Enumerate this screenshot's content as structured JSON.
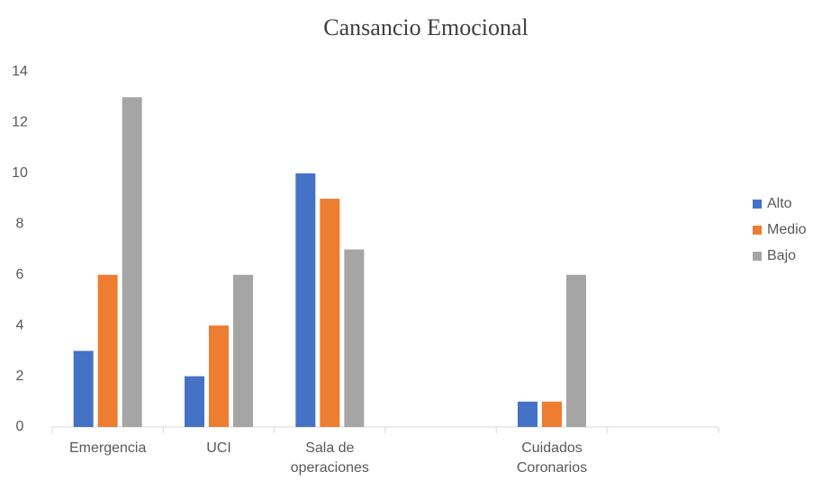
{
  "chart_data": {
    "type": "bar",
    "title": "Cansancio Emocional",
    "categories": [
      "Emergencia",
      "UCI",
      "Sala de operaciones",
      null,
      "Cuidados Coronarios",
      null
    ],
    "series": [
      {
        "name": "Alto",
        "color": "#4472c4",
        "values": [
          3,
          2,
          10,
          null,
          1,
          null
        ]
      },
      {
        "name": "Medio",
        "color": "#ed7d31",
        "values": [
          6,
          4,
          9,
          null,
          1,
          null
        ]
      },
      {
        "name": "Bajo",
        "color": "#a5a5a5",
        "values": [
          13,
          6,
          7,
          null,
          6,
          null
        ]
      }
    ],
    "ylim": [
      0,
      14
    ],
    "yticks": [
      0,
      2,
      4,
      6,
      8,
      10,
      12,
      14
    ],
    "grid": false,
    "legend": "right"
  }
}
